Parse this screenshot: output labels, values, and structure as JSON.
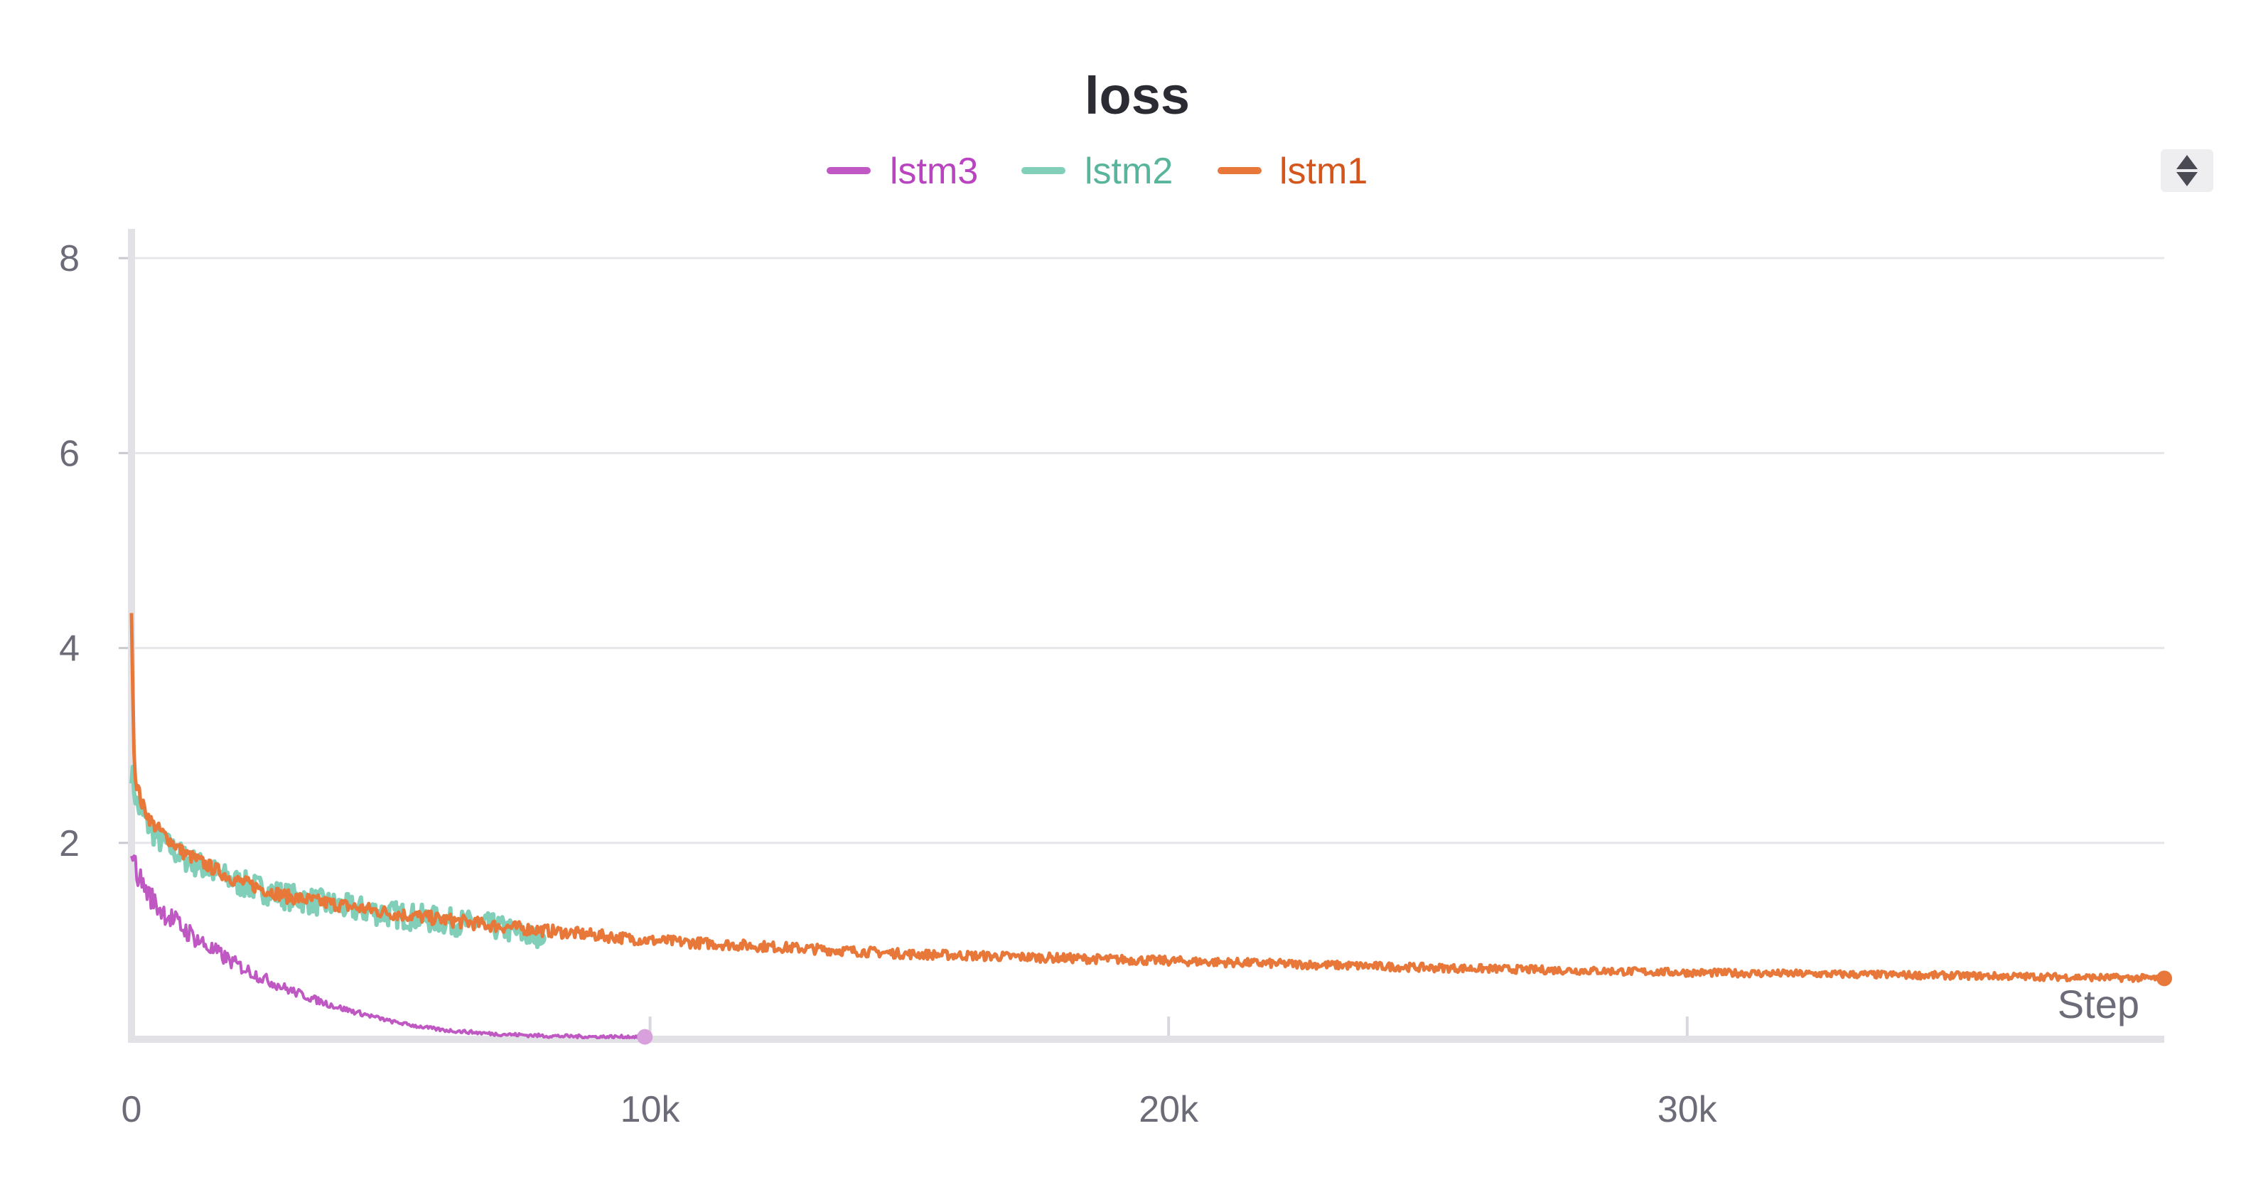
{
  "colors": {
    "lstm3": "#c058c4",
    "lstm2": "#82cfb9",
    "lstm1": "#e8783a",
    "lstm1_label": "#d4561c",
    "lstm3_label": "#b844c0",
    "lstm2_label": "#58b49a"
  },
  "sort_control": {
    "icon": "sort-updown-icon"
  },
  "chart_data": {
    "type": "line",
    "title": "loss",
    "xlabel": "Step",
    "ylabel": "",
    "xlim": [
      0,
      39200
    ],
    "ylim": [
      0,
      8.3
    ],
    "x_ticks": [
      0,
      10000,
      20000,
      30000
    ],
    "x_tick_labels": [
      "0",
      "10k",
      "20k",
      "30k"
    ],
    "y_ticks": [
      2,
      4,
      6,
      8
    ],
    "y_tick_labels": [
      "2",
      "4",
      "6",
      "8"
    ],
    "grid": true,
    "legend_position": "top-center",
    "series": [
      {
        "name": "lstm3",
        "x": [
          0,
          100,
          300,
          500,
          1000,
          1500,
          2000,
          2500,
          3000,
          3500,
          4000,
          4500,
          5000,
          5500,
          6000,
          7000,
          8000,
          9000,
          9900
        ],
        "y": [
          1.95,
          1.7,
          1.5,
          1.35,
          1.12,
          0.92,
          0.76,
          0.62,
          0.5,
          0.4,
          0.31,
          0.24,
          0.17,
          0.12,
          0.08,
          0.04,
          0.02,
          0.01,
          0.01
        ]
      },
      {
        "name": "lstm2",
        "x": [
          0,
          100,
          300,
          500,
          1000,
          1500,
          2000,
          3000,
          4000,
          5000,
          6000,
          7000,
          7850
        ],
        "y": [
          2.75,
          2.4,
          2.2,
          2.05,
          1.85,
          1.72,
          1.6,
          1.45,
          1.35,
          1.27,
          1.2,
          1.14,
          1.02
        ]
      },
      {
        "name": "lstm1",
        "x": [
          0,
          60,
          200,
          400,
          1000,
          2000,
          3000,
          5000,
          7000,
          10000,
          15000,
          20000,
          25000,
          30000,
          35000,
          39200
        ],
        "y": [
          4.3,
          2.7,
          2.4,
          2.2,
          1.9,
          1.62,
          1.45,
          1.28,
          1.15,
          1.0,
          0.86,
          0.79,
          0.72,
          0.67,
          0.64,
          0.61
        ]
      }
    ]
  }
}
